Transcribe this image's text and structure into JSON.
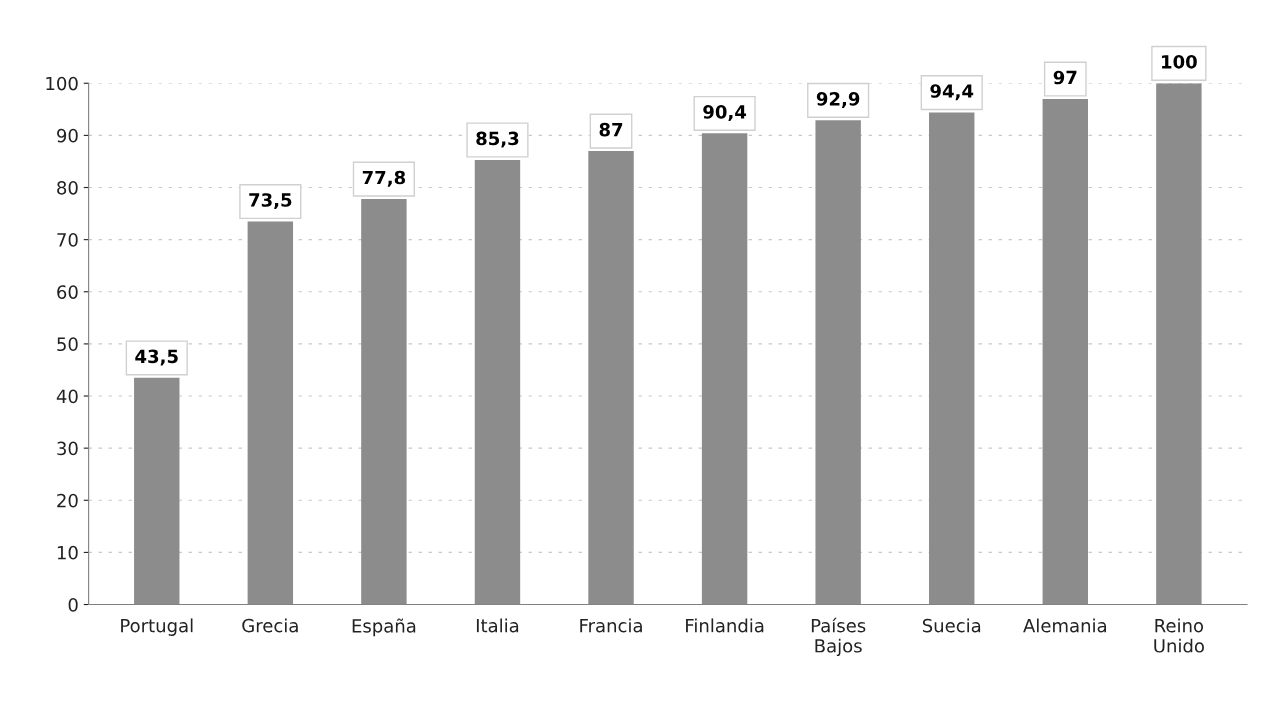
{
  "chart_data": {
    "type": "bar",
    "categories": [
      "Portugal",
      "Grecia",
      "España",
      "Italia",
      "Francia",
      "Finlandia",
      "Países\nBajos",
      "Suecia",
      "Alemania",
      "Reino\nUnido"
    ],
    "values": [
      43.5,
      73.5,
      77.8,
      85.3,
      87,
      90.4,
      92.9,
      94.4,
      97,
      100
    ],
    "value_labels": [
      "43,5",
      "73,5",
      "77,8",
      "85,3",
      "87",
      "90,4",
      "92,9",
      "94,4",
      "97",
      "100"
    ],
    "color": "#8c8c8c",
    "ylim": [
      0,
      100
    ],
    "yticks": [
      0,
      10,
      20,
      30,
      40,
      50,
      60,
      70,
      80,
      90,
      100
    ],
    "grid": "y"
  }
}
